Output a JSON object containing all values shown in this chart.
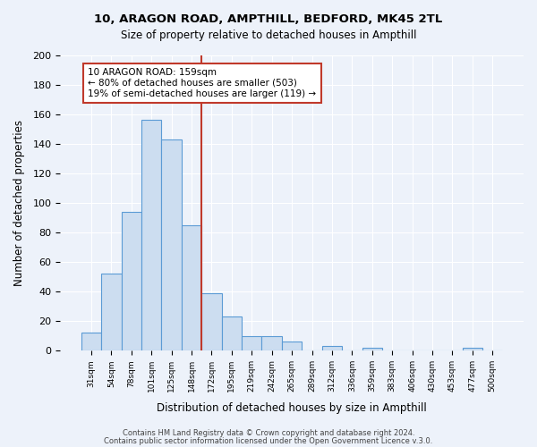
{
  "title1": "10, ARAGON ROAD, AMPTHILL, BEDFORD, MK45 2TL",
  "title2": "Size of property relative to detached houses in Ampthill",
  "xlabel": "Distribution of detached houses by size in Ampthill",
  "ylabel": "Number of detached properties",
  "bin_labels": [
    "31sqm",
    "54sqm",
    "78sqm",
    "101sqm",
    "125sqm",
    "148sqm",
    "172sqm",
    "195sqm",
    "219sqm",
    "242sqm",
    "265sqm",
    "289sqm",
    "312sqm",
    "336sqm",
    "359sqm",
    "383sqm",
    "406sqm",
    "430sqm",
    "453sqm",
    "477sqm",
    "500sqm"
  ],
  "bar_values": [
    12,
    52,
    94,
    156,
    143,
    85,
    39,
    23,
    10,
    10,
    6,
    0,
    3,
    0,
    2,
    0,
    0,
    0,
    0,
    2,
    0
  ],
  "bar_color": "#ccddf0",
  "bar_edge_color": "#5b9bd5",
  "vline_color": "#c0392b",
  "annotation_text": "10 ARAGON ROAD: 159sqm\n← 80% of detached houses are smaller (503)\n19% of semi-detached houses are larger (119) →",
  "annotation_box_color": "#c0392b",
  "ylim": [
    0,
    200
  ],
  "yticks": [
    0,
    20,
    40,
    60,
    80,
    100,
    120,
    140,
    160,
    180,
    200
  ],
  "footer1": "Contains HM Land Registry data © Crown copyright and database right 2024.",
  "footer2": "Contains public sector information licensed under the Open Government Licence v.3.0.",
  "bg_color": "#edf2fa",
  "plot_bg_color": "#edf2fa",
  "grid_color": "#ffffff"
}
